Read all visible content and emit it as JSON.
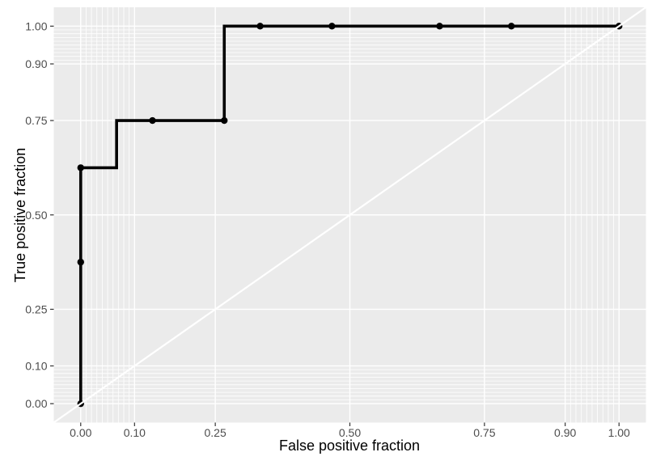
{
  "chart_data": {
    "type": "line",
    "subtype": "roc-step-curve",
    "title": "",
    "xlabel": "False positive fraction",
    "ylabel": "True positive fraction",
    "xlim": [
      0,
      1
    ],
    "ylim": [
      0,
      1
    ],
    "grid": "on",
    "legend_position": "none",
    "x_major_breaks": [
      0,
      0.1,
      0.25,
      0.5,
      0.75,
      0.9,
      1.0
    ],
    "y_major_breaks": [
      0,
      0.1,
      0.25,
      0.5,
      0.75,
      0.9,
      1.0
    ],
    "x_tick_labels": [
      "0.00",
      "0.10",
      "0.25",
      "0.50",
      "0.75",
      "0.90",
      "1.00"
    ],
    "y_tick_labels": [
      "0.00",
      "0.10",
      "0.25",
      "0.50",
      "0.75",
      "0.90",
      "1.00"
    ],
    "minor_breaks": [
      0.01,
      0.02,
      0.03,
      0.04,
      0.05,
      0.06,
      0.07,
      0.08,
      0.09,
      0.91,
      0.92,
      0.93,
      0.94,
      0.95,
      0.96,
      0.97,
      0.98,
      0.99
    ],
    "series": [
      {
        "name": "empirical-roc-curve",
        "step_vertices_fpf_tpf": [
          [
            0,
            0
          ],
          [
            0,
            0.625
          ],
          [
            0.0667,
            0.625
          ],
          [
            0.0667,
            0.75
          ],
          [
            0.2667,
            0.75
          ],
          [
            0.2667,
            1.0
          ],
          [
            1.0,
            1.0
          ]
        ]
      }
    ],
    "cutoff_points_fpf_tpf": [
      [
        0,
        0
      ],
      [
        0,
        0.375
      ],
      [
        0,
        0.625
      ],
      [
        0.1333,
        0.75
      ],
      [
        0.2667,
        0.75
      ],
      [
        0.3333,
        1.0
      ],
      [
        0.4667,
        1.0
      ],
      [
        0.6667,
        1.0
      ],
      [
        0.8,
        1.0
      ],
      [
        1.0,
        1.0
      ]
    ],
    "reference_line": {
      "name": "chance-diagonal",
      "from": [
        0,
        0
      ],
      "to": [
        1,
        1
      ]
    },
    "colors": {
      "plot_background": "#FFFFFF",
      "panel_background": "#EBEBEB",
      "grid_major": "#FFFFFF",
      "grid_minor": "#FFFFFF",
      "curve": "#000000",
      "points": "#000000",
      "reference_line": "#FFFFFF",
      "tick_mark": "#333333",
      "axis_text": "#4D4D4D",
      "axis_title": "#000000"
    }
  }
}
